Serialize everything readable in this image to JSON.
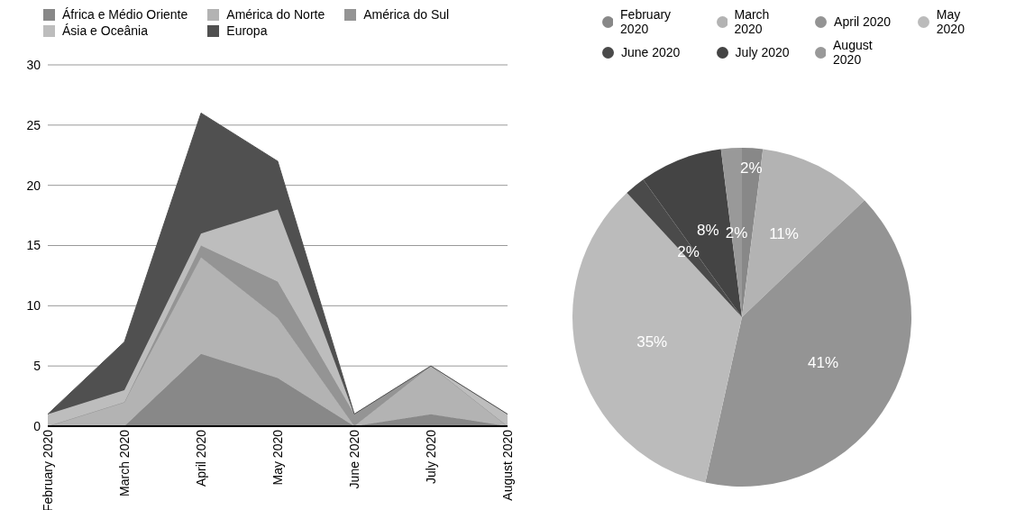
{
  "chart_data": [
    {
      "type": "area",
      "stacked": true,
      "categories": [
        "February 2020",
        "March 2020",
        "April 2020",
        "May 2020",
        "June 2020",
        "July 2020",
        "August 2020"
      ],
      "series": [
        {
          "name": "África e Médio Oriente",
          "color": "#888888",
          "values": [
            0,
            0,
            6,
            4,
            0,
            1,
            0
          ]
        },
        {
          "name": "América do Norte",
          "color": "#b3b3b3",
          "values": [
            0,
            2,
            8,
            5,
            0,
            4,
            0
          ]
        },
        {
          "name": "América do Sul",
          "color": "#949494",
          "values": [
            0,
            0,
            1,
            3,
            1,
            0,
            0
          ]
        },
        {
          "name": "Ásia e Oceânia",
          "color": "#bdbdbd",
          "values": [
            1,
            1,
            1,
            6,
            0,
            0,
            1
          ]
        },
        {
          "name": "Europa",
          "color": "#505050",
          "values": [
            0,
            4,
            10,
            4,
            0,
            0,
            0
          ]
        }
      ],
      "ylim": [
        0,
        30
      ],
      "yticks": [
        0,
        5,
        10,
        15,
        20,
        25,
        30
      ],
      "grid": "y",
      "legend": "top"
    },
    {
      "type": "pie",
      "categories": [
        "February 2020",
        "March 2020",
        "April 2020",
        "May 2020",
        "June 2020",
        "July 2020",
        "August 2020"
      ],
      "values": [
        2,
        11,
        41,
        35,
        2,
        8,
        2
      ],
      "value_labels": [
        "2%",
        "11%",
        "41%",
        "35%",
        "2%",
        "8%",
        "2%"
      ],
      "colors": [
        "#888888",
        "#b3b3b3",
        "#949494",
        "#bbbbbb",
        "#4a4a4a",
        "#444444",
        "#999999"
      ],
      "legend": "top"
    }
  ]
}
